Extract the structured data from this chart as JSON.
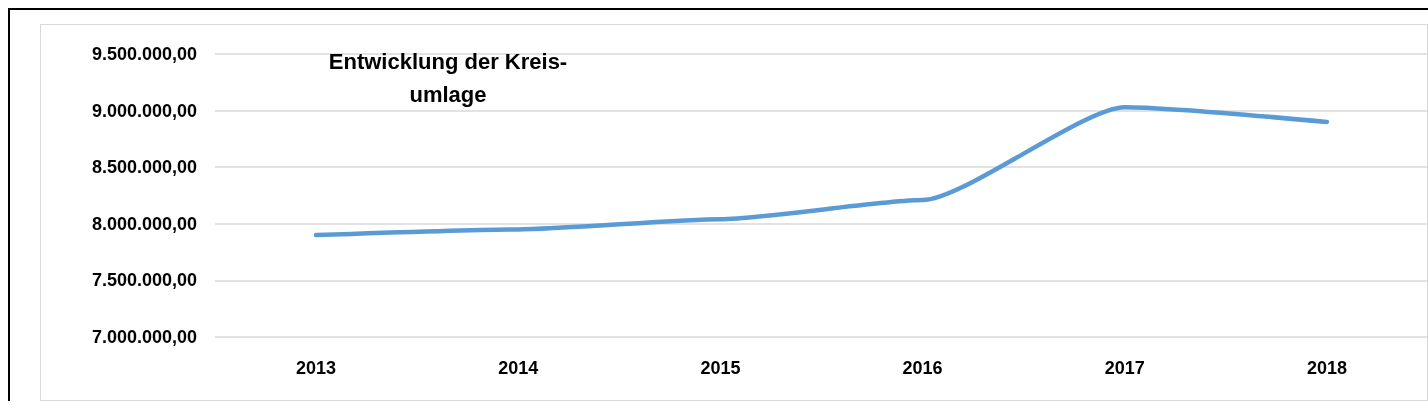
{
  "chart_data": {
    "type": "line",
    "title": "Entwicklung der Kreis-\numlage",
    "categories": [
      "2013",
      "2014",
      "2015",
      "2016",
      "2017",
      "2018"
    ],
    "series": [
      {
        "color": "#5b9bd5",
        "values": [
          7900000,
          7950000,
          8040000,
          8210000,
          9030000,
          8900000
        ]
      }
    ],
    "ylim": [
      7000000,
      9500000
    ],
    "yticks": [
      {
        "value": 7000000,
        "label": "7.000.000,00"
      },
      {
        "value": 7500000,
        "label": "7.500.000,00"
      },
      {
        "value": 8000000,
        "label": "8.000.000,00"
      },
      {
        "value": 8500000,
        "label": "8.500.000,00"
      },
      {
        "value": 9000000,
        "label": "9.000.000,00"
      },
      {
        "value": 9500000,
        "label": "9.500.000,00"
      }
    ],
    "grid": "y",
    "marker": "none",
    "line_style": "solid"
  }
}
